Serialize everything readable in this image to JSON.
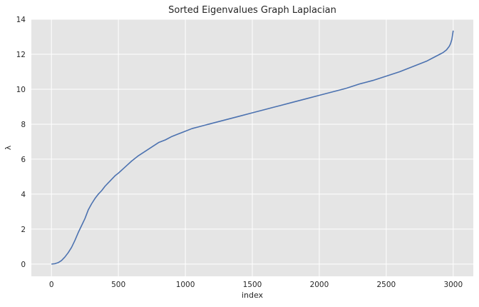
{
  "chart_data": {
    "type": "line",
    "title": "Sorted Eigenvalues Graph Laplacian",
    "xlabel": "index",
    "ylabel": "λ",
    "xlim": [
      -150,
      3150
    ],
    "ylim": [
      -0.7,
      14
    ],
    "xticks": [
      0,
      500,
      1000,
      1500,
      2000,
      2500,
      3000
    ],
    "yticks": [
      0,
      2,
      4,
      6,
      8,
      10,
      12,
      14
    ],
    "grid": true,
    "legend": "none",
    "colors": {
      "background": "#e5e5e5",
      "grid": "#ffffff",
      "line": "#4c72b0",
      "text": "#262626"
    },
    "series": [
      {
        "x": [
          0,
          25,
          50,
          75,
          100,
          125,
          150,
          175,
          200,
          225,
          250,
          275,
          300,
          325,
          350,
          375,
          400,
          425,
          450,
          475,
          500,
          550,
          600,
          650,
          700,
          750,
          800,
          850,
          900,
          950,
          1000,
          1050,
          1100,
          1150,
          1200,
          1300,
          1400,
          1500,
          1600,
          1700,
          1800,
          1900,
          2000,
          2100,
          2200,
          2300,
          2400,
          2500,
          2600,
          2700,
          2800,
          2850,
          2900,
          2925,
          2950,
          2970,
          2980,
          2990,
          2995,
          3000
        ],
        "y": [
          0,
          0.02,
          0.08,
          0.2,
          0.4,
          0.65,
          0.95,
          1.35,
          1.8,
          2.2,
          2.6,
          3.1,
          3.45,
          3.75,
          4.0,
          4.2,
          4.45,
          4.65,
          4.85,
          5.05,
          5.2,
          5.55,
          5.9,
          6.2,
          6.45,
          6.7,
          6.95,
          7.1,
          7.3,
          7.45,
          7.6,
          7.75,
          7.85,
          7.95,
          8.05,
          8.25,
          8.45,
          8.65,
          8.85,
          9.05,
          9.25,
          9.45,
          9.65,
          9.85,
          10.05,
          10.3,
          10.5,
          10.75,
          11.0,
          11.3,
          11.6,
          11.8,
          12.0,
          12.1,
          12.25,
          12.45,
          12.6,
          12.85,
          13.1,
          13.35
        ]
      }
    ]
  }
}
